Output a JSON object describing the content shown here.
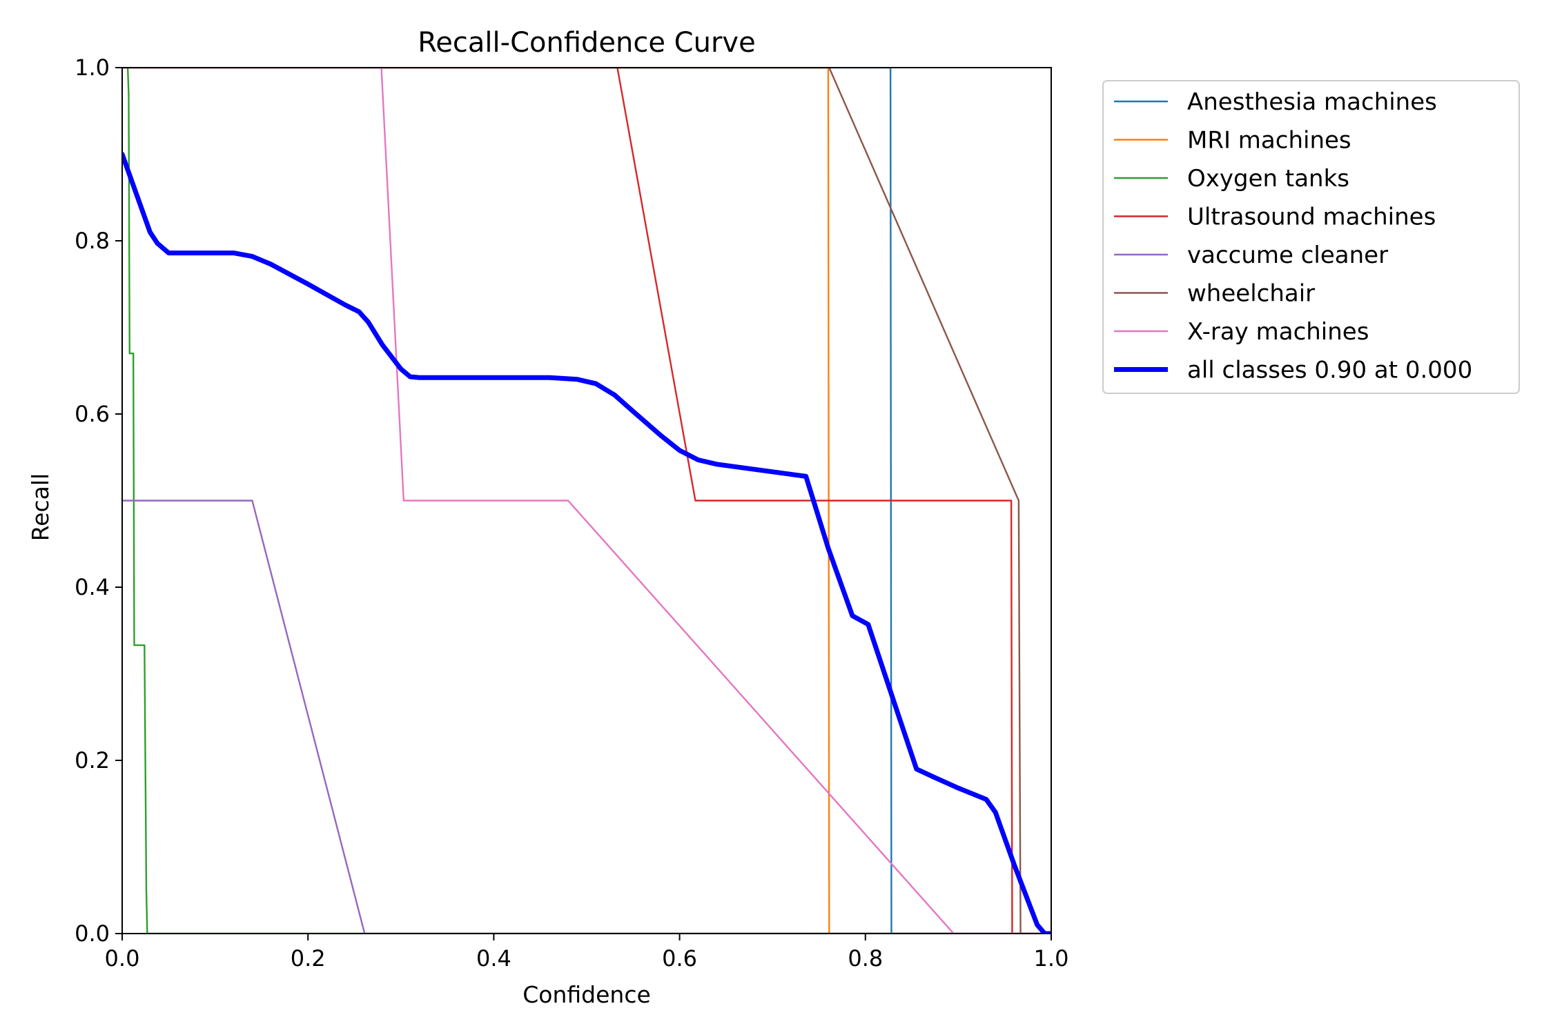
{
  "chart_data": {
    "type": "line",
    "title": "Recall-Confidence Curve",
    "xlabel": "Confidence",
    "ylabel": "Recall",
    "xlim": [
      0.0,
      1.0
    ],
    "ylim": [
      0.0,
      1.0
    ],
    "x_ticks": [
      "0.0",
      "0.2",
      "0.4",
      "0.6",
      "0.8",
      "1.0"
    ],
    "y_ticks": [
      "0.0",
      "0.2",
      "0.4",
      "0.6",
      "0.8",
      "1.0"
    ],
    "grid": false,
    "legend_position": "outside top-right",
    "series": [
      {
        "name": "Anesthesia machines",
        "color": "#1f77b4",
        "points": [
          [
            0.0,
            1.0
          ],
          [
            0.827,
            1.0
          ],
          [
            0.828,
            0.0
          ],
          [
            1.0,
            0.0
          ]
        ]
      },
      {
        "name": "MRI machines",
        "color": "#ff7f0e",
        "points": [
          [
            0.0,
            1.0
          ],
          [
            0.76,
            1.0
          ],
          [
            0.761,
            0.0
          ],
          [
            1.0,
            0.0
          ]
        ]
      },
      {
        "name": "Oxygen tanks",
        "color": "#2ca02c",
        "points": [
          [
            0.0,
            1.0
          ],
          [
            0.006,
            1.0
          ],
          [
            0.007,
            0.97
          ],
          [
            0.008,
            0.67
          ],
          [
            0.012,
            0.67
          ],
          [
            0.013,
            0.333
          ],
          [
            0.024,
            0.333
          ],
          [
            0.026,
            0.05
          ],
          [
            0.027,
            0.0
          ],
          [
            1.0,
            0.0
          ]
        ]
      },
      {
        "name": "Ultrasound machines",
        "color": "#d62728",
        "points": [
          [
            0.0,
            1.0
          ],
          [
            0.533,
            1.0
          ],
          [
            0.617,
            0.5
          ],
          [
            0.957,
            0.5
          ],
          [
            0.958,
            0.0
          ],
          [
            1.0,
            0.0
          ]
        ]
      },
      {
        "name": "vaccume cleaner",
        "color": "#9467bd",
        "points": [
          [
            0.0,
            0.5
          ],
          [
            0.14,
            0.5
          ],
          [
            0.261,
            0.0
          ],
          [
            1.0,
            0.0
          ]
        ]
      },
      {
        "name": "wheelchair",
        "color": "#8c564b",
        "points": [
          [
            0.0,
            1.0
          ],
          [
            0.761,
            1.0
          ],
          [
            0.965,
            0.5
          ],
          [
            0.967,
            0.0
          ],
          [
            1.0,
            0.0
          ]
        ]
      },
      {
        "name": "X-ray machines",
        "color": "#e377c2",
        "points": [
          [
            0.0,
            1.0
          ],
          [
            0.279,
            1.0
          ],
          [
            0.303,
            0.5
          ],
          [
            0.48,
            0.5
          ],
          [
            0.895,
            0.0
          ],
          [
            1.0,
            0.0
          ]
        ]
      },
      {
        "name": "all classes 0.90 at 0.000",
        "color": "#0000ff",
        "thick": true,
        "points": [
          [
            0.0,
            0.9
          ],
          [
            0.01,
            0.87
          ],
          [
            0.02,
            0.84
          ],
          [
            0.03,
            0.81
          ],
          [
            0.038,
            0.797
          ],
          [
            0.05,
            0.786
          ],
          [
            0.12,
            0.786
          ],
          [
            0.14,
            0.782
          ],
          [
            0.16,
            0.773
          ],
          [
            0.2,
            0.75
          ],
          [
            0.24,
            0.726
          ],
          [
            0.255,
            0.718
          ],
          [
            0.265,
            0.706
          ],
          [
            0.28,
            0.68
          ],
          [
            0.3,
            0.652
          ],
          [
            0.31,
            0.643
          ],
          [
            0.32,
            0.642
          ],
          [
            0.46,
            0.642
          ],
          [
            0.49,
            0.64
          ],
          [
            0.51,
            0.635
          ],
          [
            0.53,
            0.622
          ],
          [
            0.55,
            0.603
          ],
          [
            0.58,
            0.575
          ],
          [
            0.6,
            0.558
          ],
          [
            0.62,
            0.547
          ],
          [
            0.64,
            0.542
          ],
          [
            0.736,
            0.528
          ],
          [
            0.76,
            0.445
          ],
          [
            0.786,
            0.367
          ],
          [
            0.803,
            0.357
          ],
          [
            0.83,
            0.27
          ],
          [
            0.855,
            0.19
          ],
          [
            0.875,
            0.18
          ],
          [
            0.9,
            0.168
          ],
          [
            0.93,
            0.155
          ],
          [
            0.94,
            0.14
          ],
          [
            0.96,
            0.08
          ],
          [
            0.985,
            0.01
          ],
          [
            0.993,
            0.0
          ],
          [
            1.0,
            0.0
          ]
        ]
      }
    ]
  }
}
